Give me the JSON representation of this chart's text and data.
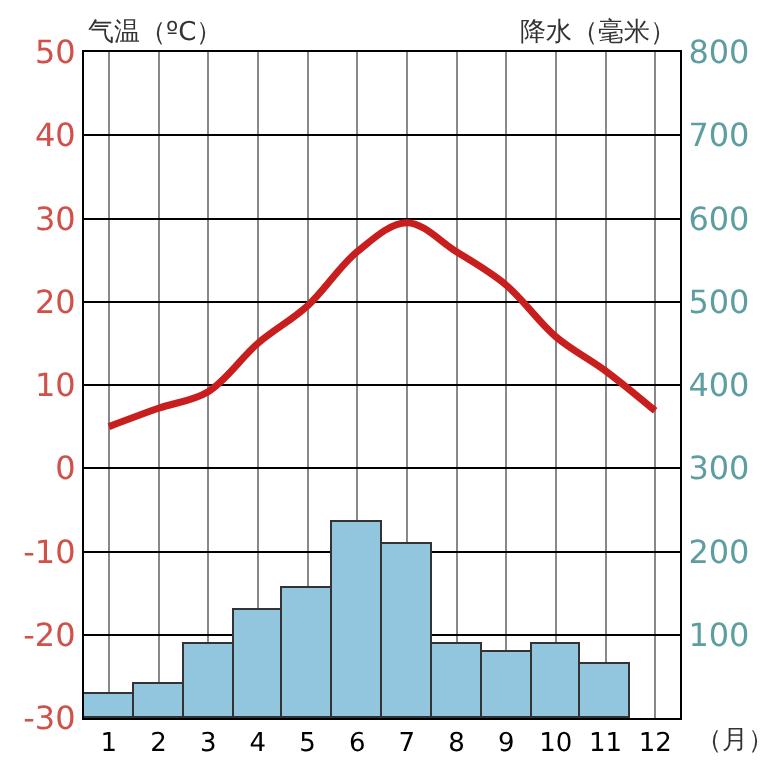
{
  "chart_data": {
    "type": "bar",
    "ylabel": "气温（ºC）",
    "y2label": "降水（毫米）",
    "xlabel": "（月）",
    "x": [
      1,
      2,
      3,
      4,
      5,
      6,
      7,
      8,
      9,
      10,
      11,
      12
    ],
    "xlim": [
      0.5,
      12.5
    ],
    "xticks": [
      1,
      2,
      3,
      4,
      5,
      6,
      7,
      8,
      9,
      10,
      11,
      12
    ],
    "ylim": [
      -30,
      50
    ],
    "yticks": [
      -30,
      -20,
      -10,
      0,
      10,
      20,
      30,
      40,
      50
    ],
    "y2lim": [
      0,
      800
    ],
    "y2ticks": [
      100,
      200,
      300,
      400,
      500,
      600,
      700,
      800
    ],
    "grid": true,
    "series": [
      {
        "axis": "y2",
        "color": "#92c5de",
        "values": [
          30,
          40,
          90,
          130,
          155,
          235,
          210,
          90,
          80,
          90,
          65,
          null
        ]
      },
      {
        "type": "line",
        "axis": "y",
        "color": "#c81e1e",
        "marker": "none",
        "line_style": "solid",
        "values": [
          5,
          7.2,
          9.2,
          15,
          19.5,
          26,
          29.5,
          26,
          22,
          15.8,
          11.7,
          6.9
        ]
      }
    ]
  }
}
